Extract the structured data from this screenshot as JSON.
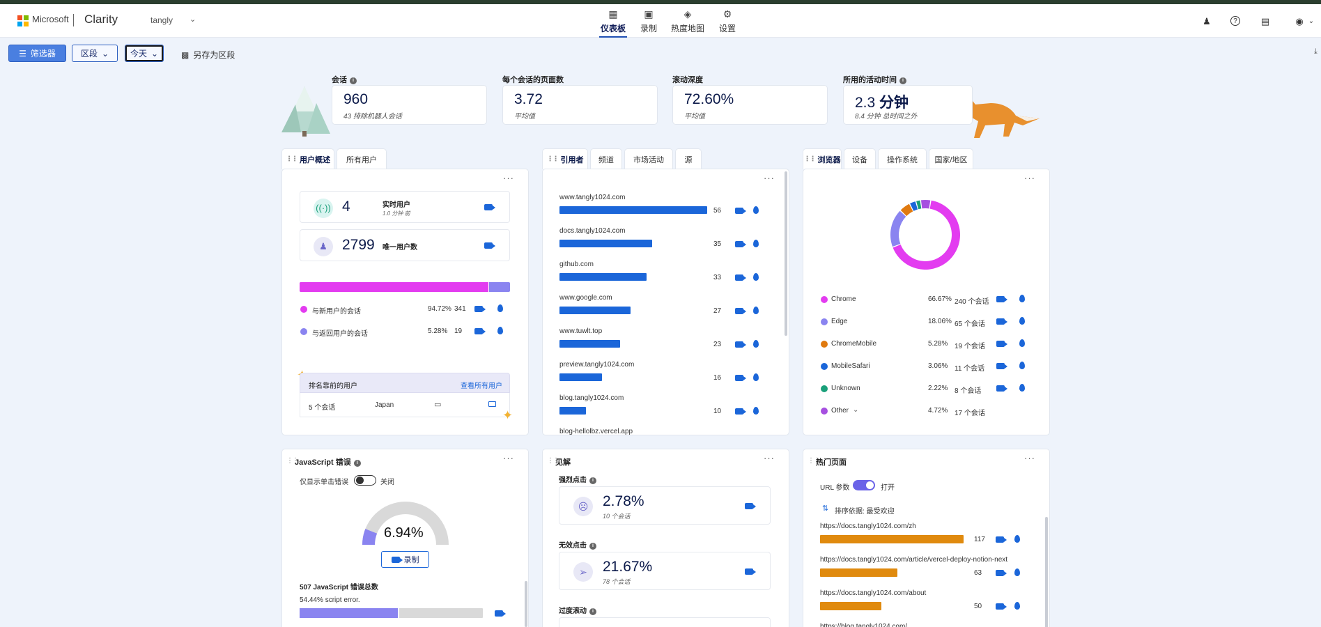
{
  "header": {
    "brand": "Microsoft",
    "app_name": "Clarity",
    "project": "tangly",
    "nav": [
      {
        "label": "仪表板",
        "icon": "dashboard-icon"
      },
      {
        "label": "录制",
        "icon": "video-icon"
      },
      {
        "label": "热度地图",
        "icon": "flame-icon"
      },
      {
        "label": "设置",
        "icon": "gear-icon"
      }
    ]
  },
  "toolbar": {
    "filters_label": "筛选器",
    "segment_label": "区段",
    "date_label": "今天",
    "save_segment_label": "另存为区段"
  },
  "metrics": [
    {
      "label": "会话",
      "value": "960",
      "sub": "43 排除机器人会话"
    },
    {
      "label": "每个会话的页面数",
      "value": "3.72",
      "sub": "平均值"
    },
    {
      "label": "滚动深度",
      "value": "72.60%",
      "sub": "平均值"
    },
    {
      "label": "所用的活动时间",
      "value": "2.3",
      "value_unit": "分钟",
      "sub": "8.4 分钟 总时间之外"
    }
  ],
  "users_panel": {
    "tabs": [
      "用户概述",
      "所有用户"
    ],
    "realtime": {
      "value": "4",
      "label": "实时用户",
      "sub": "1.0 分钟 前"
    },
    "unique": {
      "value": "2799",
      "label": "唯一用户数"
    },
    "new_pct": 94.72,
    "rows": [
      {
        "label": "与新用户的会话",
        "pct": "94.72%",
        "count": "341"
      },
      {
        "label": "与返回用户的会话",
        "pct": "5.28%",
        "count": "19"
      }
    ],
    "top_users_title": "排名靠前的用户",
    "view_all": "查看所有用户",
    "top_user": {
      "sessions": "5 个会话",
      "country": "Japan"
    }
  },
  "referrers_panel": {
    "tabs": [
      "引用者",
      "频道",
      "市场活动",
      "源"
    ],
    "max": 56,
    "rows": [
      {
        "name": "www.tangly1024.com",
        "value": 56
      },
      {
        "name": "docs.tangly1024.com",
        "value": 35
      },
      {
        "name": "github.com",
        "value": 33
      },
      {
        "name": "www.google.com",
        "value": 27
      },
      {
        "name": "www.tuwlt.top",
        "value": 23
      },
      {
        "name": "preview.tangly1024.com",
        "value": 16
      },
      {
        "name": "blog.tangly1024.com",
        "value": 10
      },
      {
        "name": "blog-hellolbz.vercel.app",
        "value": null
      }
    ]
  },
  "browsers_panel": {
    "tabs": [
      "浏览器",
      "设备",
      "操作系统",
      "国家/地区"
    ],
    "rows": [
      {
        "name": "Chrome",
        "pct": "66.67%",
        "sessions": "240 个会话",
        "color": "#e33cf0",
        "value": 66.67
      },
      {
        "name": "Edge",
        "pct": "18.06%",
        "sessions": "65 个会话",
        "color": "#8a84f0",
        "value": 18.06
      },
      {
        "name": "ChromeMobile",
        "pct": "5.28%",
        "sessions": "19 个会话",
        "color": "#e07a0f",
        "value": 5.28
      },
      {
        "name": "MobileSafari",
        "pct": "3.06%",
        "sessions": "11 个会话",
        "color": "#1b66d9",
        "value": 3.06
      },
      {
        "name": "Unknown",
        "pct": "2.22%",
        "sessions": "8 个会话",
        "color": "#1aa07a",
        "value": 2.22
      },
      {
        "name": "Other",
        "pct": "4.72%",
        "sessions": "17 个会话",
        "color": "#a64fe0",
        "value": 4.72
      }
    ]
  },
  "js_errors_panel": {
    "title": "JavaScript 错误",
    "toggle_label": "仅显示单击错误",
    "toggle_state": "关闭",
    "gauge_value": "6.94%",
    "gauge_fraction": 0.0694,
    "record_label": "录制",
    "total_label": "507 JavaScript 错误总数",
    "error_line": "54.44% script error.",
    "error_fraction": 0.5444
  },
  "insights_panel": {
    "title": "见解",
    "items": [
      {
        "title": "强烈点击",
        "value": "2.78%",
        "sub": "10 个会话"
      },
      {
        "title": "无效点击",
        "value": "21.67%",
        "sub": "78 个会话"
      },
      {
        "title": "过度滚动",
        "value": "",
        "sub": ""
      }
    ]
  },
  "pages_panel": {
    "title": "热门页面",
    "url_param_label": "URL 参数",
    "url_param_state": "打开",
    "sort_label": "排序依据: 最受欢迎",
    "max": 117,
    "rows": [
      {
        "url": "https://docs.tangly1024.com/zh",
        "value": 117
      },
      {
        "url": "https://docs.tangly1024.com/article/vercel-deploy-notion-next",
        "value": 63
      },
      {
        "url": "https://docs.tangly1024.com/about",
        "value": 50
      },
      {
        "url": "https://blog.tangly1024.com/",
        "value": null
      }
    ]
  },
  "colors": {
    "accent": "#1b66d9",
    "brand_purple": "#e33cf0",
    "orange": "#e08a0e"
  }
}
